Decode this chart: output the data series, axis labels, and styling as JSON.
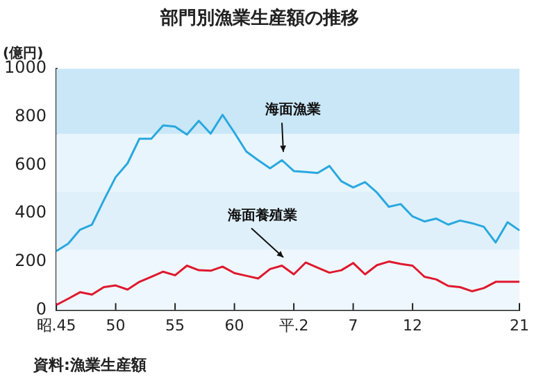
{
  "chart_data": {
    "type": "line",
    "title": "部門別漁業生産額の推移",
    "ylabel": "(億円)",
    "categories": [
      "昭.45",
      null,
      null,
      null,
      null,
      "50",
      null,
      null,
      null,
      null,
      "55",
      null,
      null,
      null,
      null,
      "60",
      null,
      null,
      null,
      null,
      "平.2",
      null,
      null,
      null,
      null,
      "7",
      null,
      null,
      null,
      null,
      "12",
      null,
      null,
      null,
      null,
      null,
      null,
      null,
      null,
      "21"
    ],
    "series": [
      {
        "name": "海面漁業",
        "color": "#29a8df",
        "values": [
          244,
          275,
          333,
          354,
          455,
          551,
          608,
          710,
          710,
          765,
          760,
          727,
          784,
          731,
          809,
          735,
          657,
          621,
          587,
          621,
          576,
          572,
          568,
          597,
          534,
          508,
          530,
          487,
          428,
          439,
          388,
          367,
          379,
          354,
          371,
          360,
          345,
          280,
          364,
          330
        ]
      },
      {
        "name": "海面養殖業",
        "color": "#e0182d",
        "values": [
          21,
          47,
          74,
          64,
          95,
          102,
          85,
          117,
          138,
          159,
          144,
          184,
          165,
          163,
          180,
          153,
          142,
          131,
          170,
          184,
          148,
          197,
          176,
          155,
          165,
          195,
          148,
          186,
          201,
          191,
          184,
          138,
          127,
          100,
          95,
          78,
          91,
          117,
          117,
          117
        ]
      }
    ],
    "ylim": [
      0,
      1000
    ],
    "yticks": [
      0,
      200,
      400,
      600,
      800,
      1000
    ],
    "grid": false,
    "legend": false,
    "bands": [
      {
        "axis": "y",
        "from": 0,
        "to": 250,
        "color": "#eef7fd"
      },
      {
        "axis": "y",
        "from": 250,
        "to": 490,
        "color": "#dff0fa"
      },
      {
        "axis": "y",
        "from": 490,
        "to": 730,
        "color": "#e8f5fc"
      },
      {
        "axis": "y",
        "from": 730,
        "to": 1000,
        "color": "#c9e7f7"
      }
    ],
    "annotations": [
      "資料:漁業生産額"
    ]
  }
}
